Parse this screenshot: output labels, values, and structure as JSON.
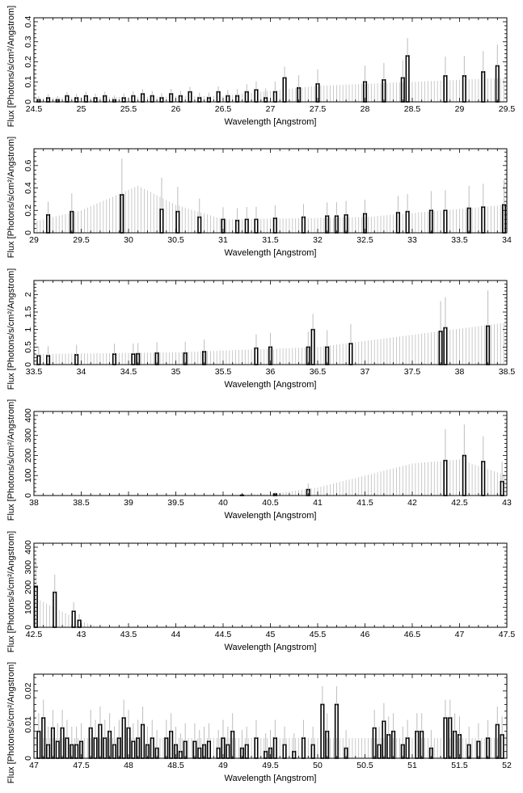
{
  "chart_data": [
    {
      "type": "line",
      "style": "histogram-with-error-bars",
      "xlabel": "Wavelength [Angstrom]",
      "ylabel": "Flux [Photons/s/cm²/Angstrom]",
      "xlim": [
        24.5,
        29.5
      ],
      "ylim": [
        0,
        0.42
      ],
      "xticks": [
        "24.5",
        "25",
        "25.5",
        "26",
        "26.5",
        "27",
        "27.5",
        "28",
        "28.5",
        "29",
        "29.5"
      ],
      "yticks": [
        "0",
        "0.1",
        "0.2",
        "0.3",
        "0.4"
      ],
      "error_profile": [
        [
          24.5,
          0.02
        ],
        [
          26.5,
          0.03
        ],
        [
          27.5,
          0.08
        ],
        [
          29.5,
          0.12
        ]
      ],
      "series": [
        {
          "x": [
            24.55,
            24.65,
            24.75,
            24.85,
            24.95,
            25.05,
            25.15,
            25.25,
            25.35,
            25.45,
            25.55,
            25.65,
            25.75,
            25.85,
            25.95,
            26.05,
            26.15,
            26.25,
            26.35,
            26.45,
            26.55,
            26.65,
            26.75,
            26.85,
            26.95,
            27.05,
            27.15,
            27.3,
            27.5,
            28.0,
            28.2,
            28.4,
            28.45,
            28.85,
            29.05,
            29.25,
            29.4
          ],
          "y": [
            0.01,
            0.02,
            0.01,
            0.03,
            0.02,
            0.03,
            0.02,
            0.03,
            0.01,
            0.02,
            0.03,
            0.04,
            0.03,
            0.02,
            0.04,
            0.03,
            0.05,
            0.02,
            0.02,
            0.05,
            0.03,
            0.03,
            0.05,
            0.06,
            0.02,
            0.05,
            0.12,
            0.07,
            0.09,
            0.1,
            0.11,
            0.12,
            0.23,
            0.13,
            0.13,
            0.15,
            0.18
          ]
        }
      ]
    },
    {
      "type": "line",
      "style": "histogram-with-error-bars",
      "xlabel": "Wavelength [Angstrom]",
      "ylabel": "Flux [Photons/s/cm²/Angstrom]",
      "xlim": [
        29,
        34
      ],
      "ylim": [
        0,
        0.75
      ],
      "xticks": [
        "29",
        "29.5",
        "30",
        "30.5",
        "31",
        "31.5",
        "32",
        "32.5",
        "33",
        "33.5",
        "34"
      ],
      "yticks": [
        "0",
        "0.2",
        "0.4",
        "0.6"
      ],
      "error_profile": [
        [
          29,
          0.1
        ],
        [
          29.5,
          0.2
        ],
        [
          30.1,
          0.42
        ],
        [
          30.5,
          0.25
        ],
        [
          31,
          0.12
        ],
        [
          32.5,
          0.14
        ],
        [
          34,
          0.25
        ]
      ],
      "series": [
        {
          "x": [
            29.15,
            29.4,
            29.93,
            30.35,
            30.52,
            30.75,
            31.0,
            31.15,
            31.25,
            31.35,
            31.55,
            31.85,
            32.1,
            32.2,
            32.3,
            32.5,
            32.85,
            32.95,
            33.2,
            33.35,
            33.6,
            33.75,
            33.97
          ],
          "y": [
            0.16,
            0.19,
            0.34,
            0.21,
            0.19,
            0.14,
            0.12,
            0.11,
            0.12,
            0.12,
            0.13,
            0.14,
            0.15,
            0.15,
            0.16,
            0.17,
            0.18,
            0.19,
            0.2,
            0.2,
            0.22,
            0.23,
            0.25
          ]
        }
      ]
    },
    {
      "type": "line",
      "style": "histogram-with-error-bars",
      "xlabel": "Wavelength [Angstrom]",
      "ylabel": "Flux [Photons/s/cm²/Angstrom]",
      "xlim": [
        33.5,
        38.5
      ],
      "ylim": [
        0,
        2.4
      ],
      "xticks": [
        "33.5",
        "34",
        "34.5",
        "35",
        "35.5",
        "36",
        "36.5",
        "37",
        "37.5",
        "38",
        "38.5"
      ],
      "yticks": [
        "0",
        "0.5",
        "1",
        "1.5",
        "2"
      ],
      "error_profile": [
        [
          33.5,
          0.3
        ],
        [
          35,
          0.35
        ],
        [
          36.5,
          0.5
        ],
        [
          37.5,
          0.85
        ],
        [
          38.5,
          1.2
        ]
      ],
      "series": [
        {
          "x": [
            33.55,
            33.65,
            33.95,
            34.35,
            34.55,
            34.6,
            34.8,
            35.1,
            35.3,
            35.85,
            36.0,
            36.4,
            36.45,
            36.6,
            36.85,
            37.8,
            37.85,
            38.3
          ],
          "y": [
            0.25,
            0.25,
            0.28,
            0.3,
            0.3,
            0.31,
            0.33,
            0.33,
            0.37,
            0.47,
            0.5,
            0.5,
            1.0,
            0.5,
            0.6,
            0.95,
            1.05,
            1.1
          ]
        }
      ]
    },
    {
      "type": "line",
      "style": "histogram-with-error-bars",
      "xlabel": "Wavelength [Angstrom]",
      "ylabel": "Flux [Photons/s/cm²/Angstrom]",
      "xlim": [
        38,
        43
      ],
      "ylim": [
        0,
        420
      ],
      "xticks": [
        "38",
        "38.5",
        "39",
        "39.5",
        "40",
        "40.5",
        "41",
        "41.5",
        "42",
        "42.5",
        "43"
      ],
      "yticks": [
        "0",
        "100",
        "200",
        "300",
        "400"
      ],
      "error_profile": [
        [
          38,
          0
        ],
        [
          40,
          2
        ],
        [
          40.5,
          8
        ],
        [
          41,
          40
        ],
        [
          41.5,
          100
        ],
        [
          42,
          160
        ],
        [
          42.5,
          180
        ],
        [
          43,
          100
        ]
      ],
      "series": [
        {
          "x": [
            40.2,
            40.55,
            40.9,
            42.35,
            42.55,
            42.75,
            42.95
          ],
          "y": [
            2,
            8,
            30,
            175,
            200,
            170,
            70
          ]
        }
      ]
    },
    {
      "type": "line",
      "style": "histogram-with-error-bars",
      "xlabel": "Wavelength [Angstrom]",
      "ylabel": "Flux [Photons/s/cm²/Angstrom]",
      "xlim": [
        42.5,
        47.5
      ],
      "ylim": [
        0,
        420
      ],
      "xticks": [
        "42.5",
        "43",
        "43.5",
        "44",
        "44.5",
        "45",
        "45.5",
        "46",
        "46.5",
        "47",
        "47.5"
      ],
      "yticks": [
        "0",
        "100",
        "200",
        "300",
        "400"
      ],
      "error_profile": [
        [
          42.5,
          150
        ],
        [
          43,
          30
        ],
        [
          43.2,
          0
        ],
        [
          47.5,
          0
        ]
      ],
      "series": [
        {
          "x": [
            42.52,
            42.72,
            42.92,
            42.98
          ],
          "y": [
            205,
            175,
            80,
            35
          ]
        }
      ]
    },
    {
      "type": "line",
      "style": "histogram-with-error-bars",
      "xlabel": "Wavelength [Angstrom]",
      "ylabel": "Flux [Photons/s/cm²/Angstrom]",
      "xlim": [
        47,
        52
      ],
      "ylim": [
        0,
        0.025
      ],
      "xticks": [
        "47",
        "47.5",
        "48",
        "48.5",
        "49",
        "49.5",
        "50",
        "50.5",
        "51",
        "51.5",
        "52"
      ],
      "yticks": [
        "0",
        "0.01",
        "0.02"
      ],
      "error_profile": [
        [
          47,
          0.006
        ],
        [
          52,
          0.006
        ]
      ],
      "series": [
        {
          "x": [
            47.05,
            47.1,
            47.15,
            47.2,
            47.25,
            47.3,
            47.35,
            47.4,
            47.45,
            47.5,
            47.6,
            47.65,
            47.7,
            47.75,
            47.8,
            47.85,
            47.9,
            47.95,
            48.0,
            48.05,
            48.1,
            48.15,
            48.2,
            48.25,
            48.3,
            48.4,
            48.45,
            48.5,
            48.55,
            48.6,
            48.7,
            48.75,
            48.8,
            48.85,
            48.95,
            49.0,
            49.05,
            49.1,
            49.2,
            49.25,
            49.35,
            49.45,
            49.5,
            49.55,
            49.65,
            49.75,
            49.85,
            49.95,
            50.05,
            50.1,
            50.2,
            50.3,
            50.6,
            50.65,
            50.7,
            50.75,
            50.8,
            50.9,
            50.95,
            51.05,
            51.1,
            51.2,
            51.35,
            51.4,
            51.45,
            51.5,
            51.6,
            51.7,
            51.8,
            51.9,
            51.95
          ],
          "y": [
            0.008,
            0.012,
            0.004,
            0.009,
            0.005,
            0.009,
            0.006,
            0.004,
            0.004,
            0.005,
            0.009,
            0.006,
            0.01,
            0.006,
            0.008,
            0.004,
            0.006,
            0.012,
            0.009,
            0.005,
            0.006,
            0.01,
            0.004,
            0.006,
            0.003,
            0.006,
            0.008,
            0.004,
            0.002,
            0.005,
            0.005,
            0.003,
            0.004,
            0.005,
            0.003,
            0.006,
            0.004,
            0.008,
            0.003,
            0.004,
            0.006,
            0.002,
            0.003,
            0.006,
            0.004,
            0.002,
            0.006,
            0.004,
            0.016,
            0.008,
            0.016,
            0.003,
            0.009,
            0.004,
            0.011,
            0.007,
            0.008,
            0.004,
            0.006,
            0.008,
            0.008,
            0.003,
            0.012,
            0.012,
            0.008,
            0.007,
            0.004,
            0.005,
            0.006,
            0.01,
            0.007
          ]
        }
      ]
    }
  ]
}
